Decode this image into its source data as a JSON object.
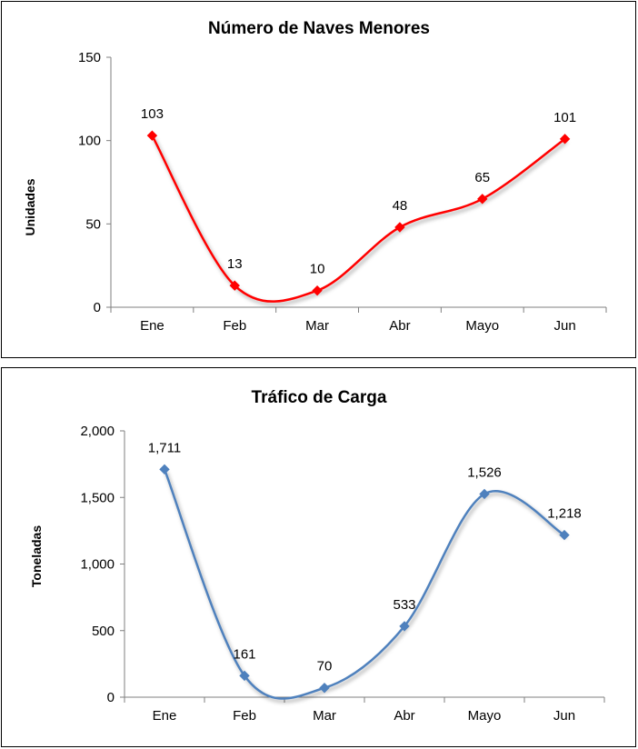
{
  "chart_data": [
    {
      "type": "line",
      "title": "Número de Naves Menores",
      "ylabel": "Unidades",
      "xlabel": "",
      "categories": [
        "Ene",
        "Feb",
        "Mar",
        "Abr",
        "Mayo",
        "Jun"
      ],
      "series": [
        {
          "values": [
            103,
            13,
            10,
            48,
            65,
            101
          ],
          "data_labels": [
            "103",
            "13",
            "10",
            "48",
            "65",
            "101"
          ],
          "color": "#ff0000",
          "marker": "diamond",
          "smooth": true
        }
      ],
      "ylim": [
        0,
        150
      ],
      "yticks": [
        "0",
        "50",
        "100",
        "150"
      ],
      "grid": false,
      "legend": "none"
    },
    {
      "type": "line",
      "title": "Tráfico de Carga",
      "ylabel": "Toneladas",
      "xlabel": "",
      "categories": [
        "Ene",
        "Feb",
        "Mar",
        "Abr",
        "Mayo",
        "Jun"
      ],
      "series": [
        {
          "values": [
            1711,
            161,
            70,
            533,
            1526,
            1218
          ],
          "data_labels": [
            "1,711",
            "161",
            "70",
            "533",
            "1,526",
            "1,218"
          ],
          "color": "#4f81bd",
          "marker": "diamond",
          "smooth": true
        }
      ],
      "ylim": [
        0,
        2000
      ],
      "yticks": [
        "0",
        "500",
        "1,000",
        "1,500",
        "2,000"
      ],
      "grid": false,
      "legend": "none"
    }
  ]
}
